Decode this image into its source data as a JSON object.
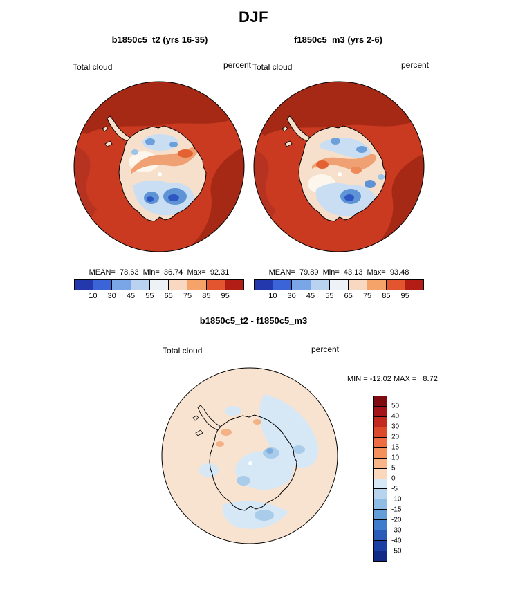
{
  "page_title": "DJF",
  "panels": {
    "left": {
      "title": "b1850c5_t2 (yrs 16-35)",
      "field": "Total cloud",
      "units": "percent",
      "stats_line": "MEAN=  78.63  Min=  36.74  Max=  92.31"
    },
    "right": {
      "title": "f1850c5_m3 (yrs 2-6)",
      "field": "Total cloud",
      "units": "percent",
      "stats_line": "MEAN=  79.89  Min=  43.13  Max=  93.48"
    },
    "diff": {
      "title": "b1850c5_t2 - f1850c5_m3",
      "field": "Total cloud",
      "units": "percent",
      "stats_line": "MIN = -12.02 MAX =   8.72"
    }
  },
  "colorbars": {
    "percent": {
      "orientation": "horizontal",
      "tick_labels": [
        "10",
        "30",
        "45",
        "55",
        "65",
        "75",
        "85",
        "95"
      ],
      "colors": [
        "#2438AE",
        "#3A64D8",
        "#7AA6E8",
        "#B8D2F0",
        "#EDF2F6",
        "#F8D8C0",
        "#F5A368",
        "#E2552F",
        "#B21E15"
      ]
    },
    "diff": {
      "orientation": "vertical",
      "tick_labels": [
        "50",
        "40",
        "30",
        "20",
        "15",
        "10",
        "5",
        "0",
        "-5",
        "-10",
        "-15",
        "-20",
        "-30",
        "-40",
        "-50"
      ],
      "colors": [
        "#7F0B10",
        "#A31318",
        "#C22A20",
        "#DC4A2C",
        "#EC6E42",
        "#F4905C",
        "#F9B488",
        "#FBD8BC",
        "#D9E8F5",
        "#B6D4EE",
        "#8FBCE4",
        "#649ED8",
        "#3F7CCB",
        "#2A5BB8",
        "#1C3FA4",
        "#122A86"
      ]
    }
  },
  "chart_data": [
    {
      "type": "heatmap",
      "title": "b1850c5_t2 (yrs 16-35)",
      "season": "DJF",
      "variable": "Total cloud",
      "units": "percent",
      "projection": "south polar stereographic",
      "stats": {
        "mean": 78.63,
        "min": 36.74,
        "max": 92.31
      },
      "contour_levels": [
        10,
        30,
        45,
        55,
        65,
        75,
        85,
        95
      ],
      "legend_position": "bottom",
      "notes": "High cloud fraction (85-95+, dark red) over Southern Ocean; low values (35-65, blues/whites) over Antarctic interior"
    },
    {
      "type": "heatmap",
      "title": "f1850c5_m3 (yrs 2-6)",
      "season": "DJF",
      "variable": "Total cloud",
      "units": "percent",
      "projection": "south polar stereographic",
      "stats": {
        "mean": 79.89,
        "min": 43.13,
        "max": 93.48
      },
      "contour_levels": [
        10,
        30,
        45,
        55,
        65,
        75,
        85,
        95
      ],
      "legend_position": "bottom",
      "notes": "High cloud fraction (85-95+, dark red) over Southern Ocean; low values (43-65, blues/whites) over Antarctic interior"
    },
    {
      "type": "heatmap",
      "title": "b1850c5_t2 - f1850c5_m3",
      "season": "DJF",
      "variable": "Total cloud",
      "units": "percent",
      "projection": "south polar stereographic",
      "stats": {
        "min": -12.02,
        "max": 8.72
      },
      "contour_levels": [
        -50,
        -40,
        -30,
        -20,
        -15,
        -10,
        -5,
        0,
        5,
        10,
        15,
        20,
        30,
        40,
        50
      ],
      "legend_position": "right",
      "notes": "Differences mostly within -10 to +5; pale blues and pale oranges dominate"
    }
  ]
}
